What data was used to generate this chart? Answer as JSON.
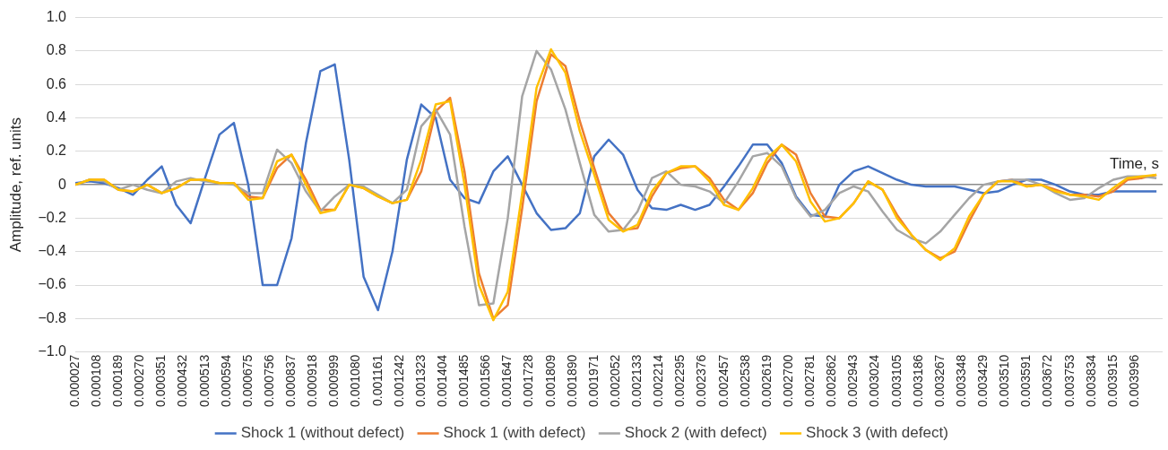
{
  "chart_data": {
    "type": "line",
    "xlabel": "Time, s",
    "ylabel": "Amplitude, ref. units",
    "x": [
      2.7e-05,
      8.1e-05,
      0.000135,
      0.000189,
      0.000243,
      0.000297,
      0.000351,
      0.000405,
      0.000459,
      0.000513,
      0.000567,
      0.000621,
      0.000675,
      0.000729,
      0.000783,
      0.000837,
      0.000891,
      0.000945,
      0.000999,
      0.001053,
      0.001107,
      0.001161,
      0.001215,
      0.001269,
      0.001323,
      0.001377,
      0.001431,
      0.001485,
      0.001539,
      0.001593,
      0.001647,
      0.001701,
      0.001755,
      0.001809,
      0.001863,
      0.001917,
      0.001971,
      0.002025,
      0.002079,
      0.002133,
      0.002187,
      0.002241,
      0.002295,
      0.002349,
      0.002403,
      0.002457,
      0.002511,
      0.002565,
      0.002619,
      0.002673,
      0.002727,
      0.002781,
      0.002835,
      0.002889,
      0.002943,
      0.002997,
      0.003051,
      0.003105,
      0.003159,
      0.003213,
      0.003267,
      0.003321,
      0.003375,
      0.003429,
      0.003483,
      0.003537,
      0.003591,
      0.003645,
      0.003699,
      0.003753,
      0.003807,
      0.003861,
      0.003915,
      0.003969,
      0.004023,
      0.004077
    ],
    "series": [
      {
        "name": "Shock 1 (without defect)",
        "color": "#4472c4",
        "values": [
          0.01,
          0.02,
          0.01,
          -0.02,
          -0.06,
          0.03,
          0.11,
          -0.12,
          -0.23,
          0.04,
          0.3,
          0.37,
          0.0,
          -0.6,
          -0.6,
          -0.32,
          0.25,
          0.68,
          0.72,
          0.15,
          -0.55,
          -0.75,
          -0.4,
          0.15,
          0.48,
          0.4,
          0.03,
          -0.08,
          -0.11,
          0.08,
          0.17,
          0.0,
          -0.17,
          -0.27,
          -0.26,
          -0.17,
          0.17,
          0.27,
          0.18,
          -0.03,
          -0.14,
          -0.15,
          -0.12,
          -0.15,
          -0.12,
          -0.01,
          0.11,
          0.24,
          0.24,
          0.13,
          -0.07,
          -0.18,
          -0.19,
          0.0,
          0.08,
          0.11,
          0.07,
          0.03,
          0.0,
          -0.01,
          -0.01,
          -0.01,
          -0.03,
          -0.05,
          -0.04,
          0.0,
          0.03,
          0.03,
          0.0,
          -0.04,
          -0.06,
          -0.06,
          -0.04,
          -0.04,
          -0.04,
          -0.04
        ]
      },
      {
        "name": "Shock 1 (with defect)",
        "color": "#ed7d31",
        "values": [
          0.0,
          0.03,
          0.03,
          -0.03,
          -0.04,
          0.0,
          -0.05,
          -0.02,
          0.03,
          0.03,
          0.01,
          0.01,
          -0.07,
          -0.08,
          0.1,
          0.18,
          0.03,
          -0.15,
          -0.15,
          0.0,
          -0.02,
          -0.07,
          -0.11,
          -0.09,
          0.08,
          0.44,
          0.52,
          0.08,
          -0.53,
          -0.8,
          -0.72,
          -0.14,
          0.5,
          0.78,
          0.71,
          0.38,
          0.1,
          -0.17,
          -0.27,
          -0.26,
          -0.07,
          0.07,
          0.1,
          0.11,
          0.04,
          -0.09,
          -0.15,
          -0.05,
          0.13,
          0.24,
          0.18,
          -0.05,
          -0.19,
          -0.2,
          -0.11,
          0.02,
          -0.03,
          -0.18,
          -0.3,
          -0.39,
          -0.44,
          -0.4,
          -0.22,
          -0.06,
          0.02,
          0.03,
          -0.01,
          0.0,
          -0.03,
          -0.06,
          -0.06,
          -0.07,
          -0.04,
          0.03,
          0.04,
          0.06
        ]
      },
      {
        "name": "Shock 2 (with defect)",
        "color": "#a5a5a5",
        "values": [
          0.0,
          0.03,
          0.02,
          -0.03,
          0.0,
          -0.03,
          -0.05,
          0.02,
          0.04,
          0.02,
          0.01,
          0.0,
          -0.05,
          -0.05,
          0.21,
          0.13,
          -0.04,
          -0.16,
          -0.07,
          0.0,
          -0.01,
          -0.06,
          -0.11,
          -0.03,
          0.35,
          0.45,
          0.3,
          -0.25,
          -0.72,
          -0.71,
          -0.2,
          0.53,
          0.8,
          0.69,
          0.45,
          0.13,
          -0.18,
          -0.28,
          -0.27,
          -0.16,
          0.04,
          0.08,
          0.0,
          -0.01,
          -0.04,
          -0.11,
          0.02,
          0.17,
          0.19,
          0.11,
          -0.08,
          -0.19,
          -0.15,
          -0.05,
          -0.01,
          -0.04,
          -0.16,
          -0.27,
          -0.32,
          -0.35,
          -0.28,
          -0.18,
          -0.08,
          0.0,
          0.02,
          0.03,
          0.03,
          0.0,
          -0.05,
          -0.09,
          -0.08,
          -0.02,
          0.03,
          0.05,
          0.05,
          0.04
        ]
      },
      {
        "name": "Shock 3 (with defect)",
        "color": "#ffc000",
        "values": [
          0.0,
          0.03,
          0.03,
          -0.03,
          -0.04,
          0.0,
          -0.05,
          -0.02,
          0.03,
          0.03,
          0.01,
          0.01,
          -0.09,
          -0.08,
          0.14,
          0.18,
          0.0,
          -0.17,
          -0.15,
          0.0,
          -0.02,
          -0.07,
          -0.11,
          -0.09,
          0.15,
          0.48,
          0.5,
          0.0,
          -0.6,
          -0.81,
          -0.64,
          -0.05,
          0.58,
          0.81,
          0.67,
          0.32,
          0.06,
          -0.21,
          -0.28,
          -0.24,
          -0.04,
          0.07,
          0.11,
          0.11,
          0.02,
          -0.12,
          -0.15,
          -0.02,
          0.16,
          0.24,
          0.14,
          -0.1,
          -0.22,
          -0.2,
          -0.11,
          0.02,
          -0.03,
          -0.2,
          -0.3,
          -0.39,
          -0.45,
          -0.38,
          -0.19,
          -0.06,
          0.02,
          0.02,
          -0.01,
          0.0,
          -0.04,
          -0.06,
          -0.07,
          -0.09,
          -0.02,
          0.04,
          0.05,
          0.06
        ]
      }
    ],
    "xlim": [
      2.7e-05,
      0.0041
    ],
    "xticks": [
      {
        "value": 2.7e-05,
        "label": "0.000027"
      },
      0.000108,
      0.000189,
      {
        "value": 0.00027,
        "label": "0.000270"
      },
      0.000351,
      0.000432,
      0.000513,
      0.000594,
      0.000675,
      0.000756,
      0.000837,
      0.000918,
      0.000999,
      {
        "value": 0.00108,
        "label": "0.001080"
      },
      0.001161,
      0.001242,
      0.001323,
      0.001404,
      0.001485,
      0.001566,
      0.001647,
      0.001728,
      0.001809,
      {
        "value": 0.00189,
        "label": "0.001890"
      },
      0.001971,
      0.002052,
      0.002133,
      0.002214,
      0.002295,
      0.002376,
      0.002457,
      0.002538,
      0.002619,
      {
        "value": 0.0027,
        "label": "0.002700"
      },
      0.002781,
      0.002862,
      0.002943,
      0.003024,
      0.003105,
      0.003186,
      0.003267,
      0.003348,
      0.003429,
      {
        "value": 0.00351,
        "label": "0.003510"
      },
      0.003591,
      0.003672,
      0.003753,
      0.003834,
      0.003915,
      0.003996
    ],
    "ylim": [
      -1,
      1
    ],
    "yticks": [
      {
        "value": -1,
        "label": "−1.0"
      },
      {
        "value": -0.8,
        "label": "−0.8"
      },
      {
        "value": -0.6,
        "label": "−0.6"
      },
      {
        "value": -0.4,
        "label": "−0.4"
      },
      {
        "value": -0.2,
        "label": "−0.2"
      },
      0,
      0.2,
      0.4,
      0.6,
      0.8,
      {
        "value": 1,
        "label": "1.0"
      }
    ],
    "grid": "y",
    "legend": "bottom"
  }
}
